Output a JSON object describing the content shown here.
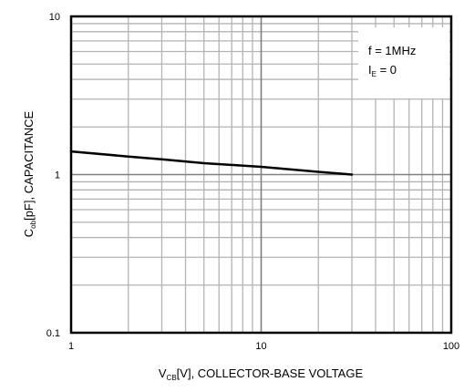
{
  "chart_data": {
    "type": "line",
    "x_scale": "log",
    "y_scale": "log",
    "xlim": [
      1,
      100
    ],
    "ylim": [
      0.1,
      10
    ],
    "x_ticks": [
      1,
      10,
      100
    ],
    "x_tick_labels": [
      "1",
      "10",
      "100"
    ],
    "y_ticks": [
      0.1,
      1,
      10
    ],
    "y_tick_labels": [
      "0.1",
      "1",
      "10"
    ],
    "grid": true,
    "xlabel": {
      "prefix": "V",
      "sub": "CB",
      "suffix": "[V], COLLECTOR-BASE VOLTAGE"
    },
    "ylabel": {
      "prefix": "C",
      "sub": "ob",
      "suffix": "[pF], CAPACITANCE"
    },
    "legend_placement": "top-right",
    "annotation": {
      "line1": "f = 1MHz",
      "line2_prefix": "I",
      "line2_sub": "E",
      "line2_suffix": " = 0"
    },
    "series": [
      {
        "x": [
          1,
          2,
          3,
          5,
          10,
          20,
          30
        ],
        "y": [
          1.4,
          1.3,
          1.25,
          1.18,
          1.12,
          1.04,
          1.0
        ]
      }
    ]
  }
}
